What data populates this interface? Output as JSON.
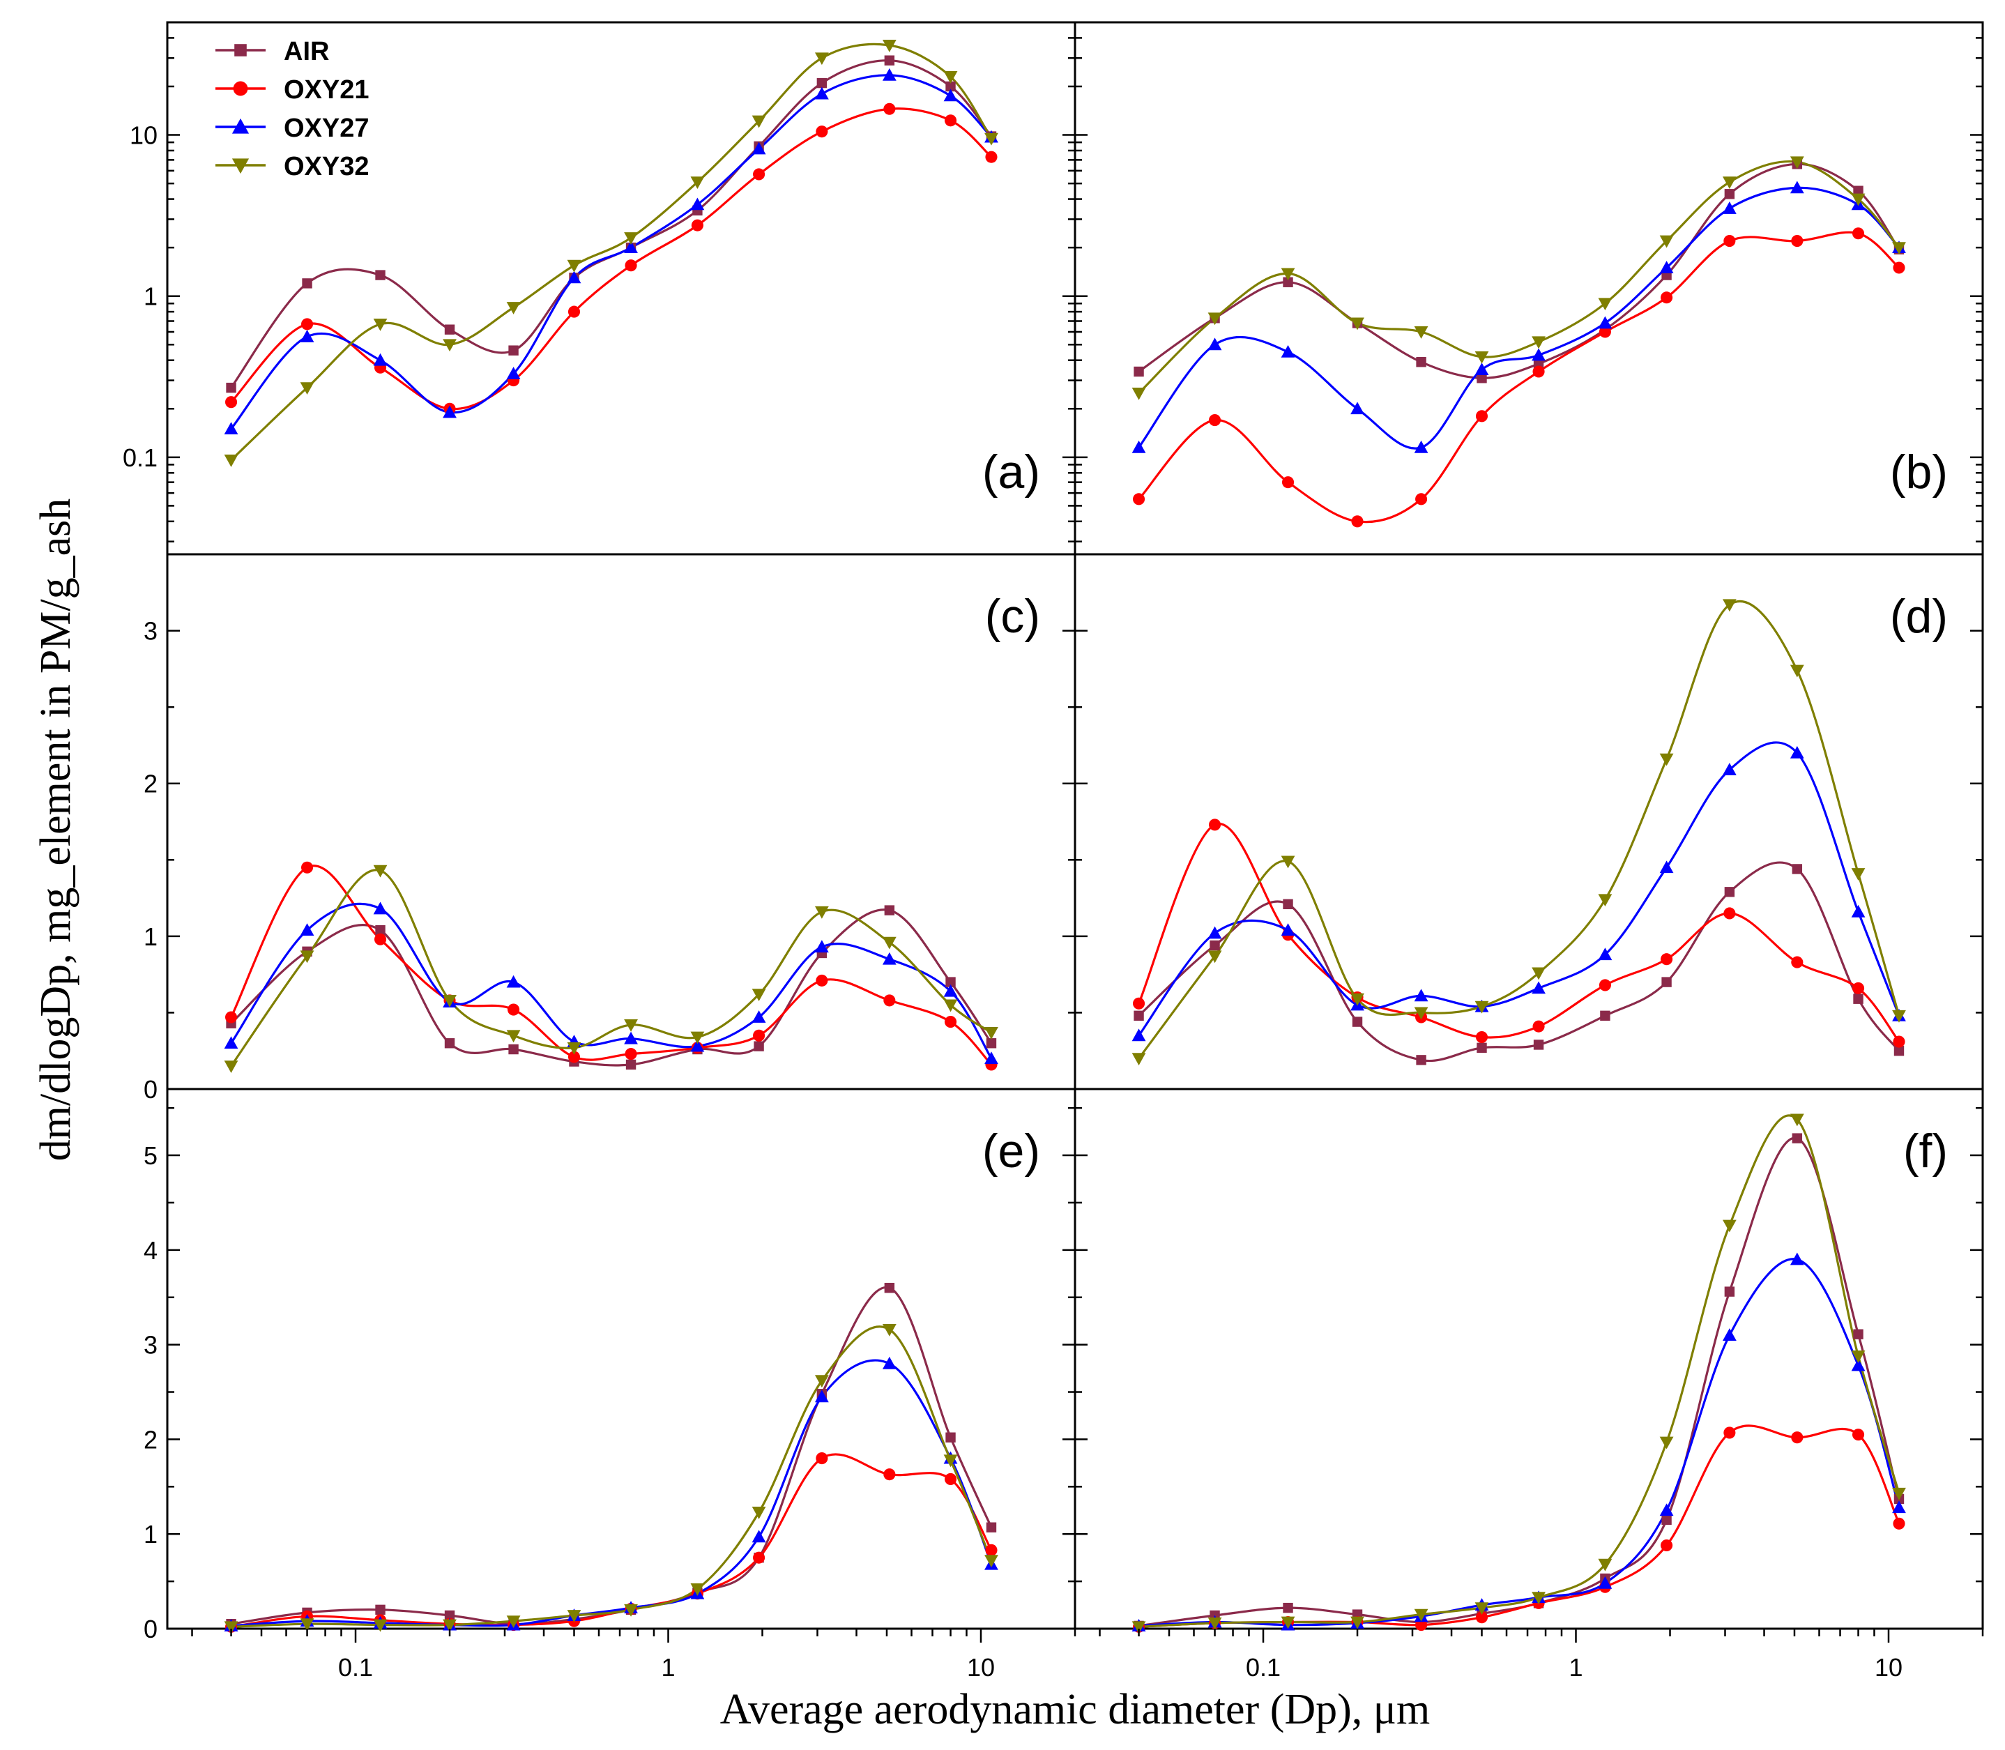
{
  "chart_data": {
    "type": "line",
    "xlabel": "Average aerodynamic diameter (Dp), μm",
    "ylabel": "dm/dlogDp, mg_element in PM/g_ash",
    "x": [
      0.04,
      0.07,
      0.12,
      0.2,
      0.32,
      0.5,
      0.76,
      1.24,
      1.95,
      3.1,
      5.1,
      8.0,
      10.8
    ],
    "xscale": "log",
    "xlim": [
      0.025,
      20
    ],
    "x_ticks": [
      0.1,
      1,
      10
    ],
    "x_tick_labels": [
      "0.1",
      "1",
      "10"
    ],
    "legend": [
      {
        "name": "AIR",
        "color": "#8b2a4a",
        "marker": "square"
      },
      {
        "name": "OXY21",
        "color": "#ff0000",
        "marker": "circle"
      },
      {
        "name": "OXY27",
        "color": "#0000ff",
        "marker": "triangle-up"
      },
      {
        "name": "OXY32",
        "color": "#7f7f00",
        "marker": "triangle-down"
      }
    ],
    "legend_position": "top-left of panel (a)",
    "panels": [
      {
        "label": "(a)",
        "yscale": "log",
        "ylim": [
          0.025,
          50
        ],
        "y_ticks": [
          0.1,
          1,
          10
        ],
        "y_tick_labels": [
          "0.1",
          "1",
          "10"
        ],
        "series": [
          {
            "name": "AIR",
            "values": [
              0.27,
              1.2,
              1.35,
              0.62,
              0.46,
              1.3,
              2.0,
              3.4,
              8.5,
              21,
              29,
              20,
              9.8
            ]
          },
          {
            "name": "OXY21",
            "values": [
              0.22,
              0.67,
              0.36,
              0.2,
              0.3,
              0.8,
              1.55,
              2.75,
              5.7,
              10.5,
              14.5,
              12.3,
              7.3
            ]
          },
          {
            "name": "OXY27",
            "values": [
              0.15,
              0.56,
              0.4,
              0.19,
              0.33,
              1.3,
              2.0,
              3.7,
              8.2,
              18,
              23.5,
              17.5,
              9.7
            ]
          },
          {
            "name": "OXY32",
            "values": [
              0.096,
              0.27,
              0.67,
              0.5,
              0.85,
              1.55,
              2.3,
              5.1,
              12.2,
              30,
              36,
              23,
              9.5
            ]
          }
        ]
      },
      {
        "label": "(b)",
        "yscale": "log",
        "ylim": [
          0.025,
          50
        ],
        "y_ticks": [],
        "y_tick_labels": [],
        "series": [
          {
            "name": "AIR",
            "values": [
              0.34,
              0.73,
              1.22,
              0.68,
              0.39,
              0.31,
              0.38,
              0.62,
              1.35,
              4.3,
              6.6,
              4.5,
              1.95
            ]
          },
          {
            "name": "OXY21",
            "values": [
              0.055,
              0.17,
              0.07,
              0.04,
              0.055,
              0.18,
              0.34,
              0.6,
              0.98,
              2.2,
              2.2,
              2.45,
              1.5
            ]
          },
          {
            "name": "OXY27",
            "values": [
              0.115,
              0.5,
              0.45,
              0.2,
              0.115,
              0.35,
              0.43,
              0.68,
              1.5,
              3.5,
              4.7,
              3.7,
              2.0
            ]
          },
          {
            "name": "OXY32",
            "values": [
              0.25,
              0.73,
              1.38,
              0.68,
              0.6,
              0.42,
              0.52,
              0.9,
              2.2,
              5.1,
              6.8,
              4.0,
              2.0
            ]
          }
        ]
      },
      {
        "label": "(c)",
        "yscale": "linear",
        "ylim": [
          0,
          3.5
        ],
        "y_ticks": [
          0,
          1,
          2,
          3
        ],
        "y_tick_labels": [
          "0",
          "1",
          "2",
          "3"
        ],
        "series": [
          {
            "name": "AIR",
            "values": [
              0.43,
              0.9,
              1.04,
              0.3,
              0.26,
              0.18,
              0.16,
              0.26,
              0.28,
              0.89,
              1.17,
              0.7,
              0.3
            ]
          },
          {
            "name": "OXY21",
            "values": [
              0.47,
              1.45,
              0.98,
              0.58,
              0.52,
              0.21,
              0.23,
              0.27,
              0.35,
              0.71,
              0.58,
              0.44,
              0.16
            ]
          },
          {
            "name": "OXY27",
            "values": [
              0.3,
              1.04,
              1.18,
              0.57,
              0.7,
              0.31,
              0.33,
              0.28,
              0.47,
              0.93,
              0.85,
              0.64,
              0.2
            ]
          },
          {
            "name": "OXY32",
            "values": [
              0.15,
              0.87,
              1.43,
              0.58,
              0.35,
              0.27,
              0.42,
              0.34,
              0.62,
              1.16,
              0.96,
              0.55,
              0.37
            ]
          }
        ]
      },
      {
        "label": "(d)",
        "yscale": "linear",
        "ylim": [
          0,
          3.5
        ],
        "y_ticks": [],
        "y_tick_labels": [],
        "series": [
          {
            "name": "AIR",
            "values": [
              0.48,
              0.94,
              1.21,
              0.44,
              0.19,
              0.27,
              0.29,
              0.48,
              0.7,
              1.29,
              1.44,
              0.59,
              0.25
            ]
          },
          {
            "name": "OXY21",
            "values": [
              0.56,
              1.73,
              1.01,
              0.6,
              0.47,
              0.34,
              0.41,
              0.68,
              0.85,
              1.15,
              0.83,
              0.66,
              0.31
            ]
          },
          {
            "name": "OXY27",
            "values": [
              0.35,
              1.02,
              1.04,
              0.55,
              0.61,
              0.54,
              0.66,
              0.88,
              1.45,
              2.09,
              2.2,
              1.16,
              0.48
            ]
          },
          {
            "name": "OXY32",
            "values": [
              0.2,
              0.87,
              1.49,
              0.59,
              0.5,
              0.54,
              0.76,
              1.24,
              2.16,
              3.17,
              2.74,
              1.41,
              0.48
            ]
          }
        ]
      },
      {
        "label": "(e)",
        "yscale": "linear",
        "ylim": [
          0,
          5.7
        ],
        "y_ticks": [
          0,
          1,
          2,
          3,
          4,
          5
        ],
        "y_tick_labels": [
          "0",
          "1",
          "2",
          "3",
          "4",
          "5"
        ],
        "series": [
          {
            "name": "AIR",
            "values": [
              0.05,
              0.17,
              0.2,
              0.14,
              0.05,
              0.1,
              0.2,
              0.38,
              0.75,
              2.48,
              3.6,
              2.02,
              1.07
            ]
          },
          {
            "name": "OXY21",
            "values": [
              0.02,
              0.13,
              0.09,
              0.05,
              0.04,
              0.08,
              0.21,
              0.37,
              0.75,
              1.8,
              1.63,
              1.58,
              0.83
            ]
          },
          {
            "name": "OXY27",
            "values": [
              0.03,
              0.08,
              0.06,
              0.04,
              0.04,
              0.14,
              0.22,
              0.37,
              0.97,
              2.45,
              2.8,
              1.8,
              0.68
            ]
          },
          {
            "name": "OXY32",
            "values": [
              0.02,
              0.05,
              0.04,
              0.04,
              0.08,
              0.14,
              0.2,
              0.42,
              1.23,
              2.62,
              3.16,
              1.78,
              0.72
            ]
          }
        ]
      },
      {
        "label": "(f)",
        "yscale": "linear",
        "ylim": [
          0,
          5.7
        ],
        "y_ticks": [],
        "y_tick_labels": [],
        "series": [
          {
            "name": "AIR",
            "values": [
              0.03,
              0.14,
              0.22,
              0.15,
              0.07,
              0.16,
              0.27,
              0.53,
              1.15,
              3.56,
              5.18,
              3.11,
              1.37
            ]
          },
          {
            "name": "OXY21",
            "values": [
              0.02,
              0.06,
              0.07,
              0.07,
              0.04,
              0.12,
              0.27,
              0.44,
              0.88,
              2.07,
              2.02,
              2.05,
              1.11
            ]
          },
          {
            "name": "OXY27",
            "values": [
              0.03,
              0.07,
              0.04,
              0.06,
              0.13,
              0.25,
              0.33,
              0.48,
              1.25,
              3.1,
              3.9,
              2.78,
              1.28
            ]
          },
          {
            "name": "OXY32",
            "values": [
              0.02,
              0.06,
              0.07,
              0.07,
              0.15,
              0.22,
              0.33,
              0.68,
              1.97,
              4.26,
              5.38,
              2.88,
              1.43
            ]
          }
        ]
      }
    ]
  }
}
